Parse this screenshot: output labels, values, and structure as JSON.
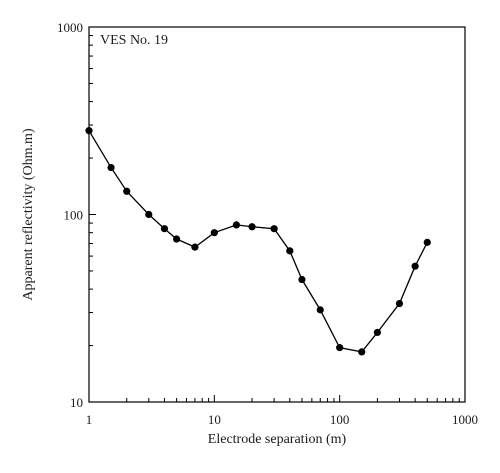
{
  "chart_data": {
    "type": "line",
    "title": "",
    "annotation": "VES No. 19",
    "xlabel": "Electrode separation (m)",
    "ylabel": "Apparent reflectivity (Ohm.m)",
    "xscale": "log",
    "yscale": "log",
    "xlim": [
      1,
      1000
    ],
    "ylim": [
      10,
      1000
    ],
    "x_ticks": [
      1,
      10,
      100,
      1000
    ],
    "x_tick_labels": [
      "1",
      "10",
      "100",
      "1000"
    ],
    "y_ticks": [
      10,
      100,
      1000
    ],
    "y_tick_labels": [
      "10",
      "100",
      "1000"
    ],
    "grid": false,
    "legend": "none",
    "line_color": "#000000",
    "marker": "filled-circle",
    "series": [
      {
        "x": [
          1,
          1.5,
          2,
          3,
          4,
          5,
          7,
          10,
          15,
          20,
          30,
          40,
          50,
          70,
          100,
          150,
          200,
          300,
          400,
          500
        ],
        "y": [
          280,
          178,
          133,
          100,
          84,
          74,
          67,
          80,
          88,
          86,
          84,
          64,
          45,
          31,
          19.5,
          18.5,
          23.5,
          33.5,
          53,
          71
        ]
      }
    ]
  }
}
